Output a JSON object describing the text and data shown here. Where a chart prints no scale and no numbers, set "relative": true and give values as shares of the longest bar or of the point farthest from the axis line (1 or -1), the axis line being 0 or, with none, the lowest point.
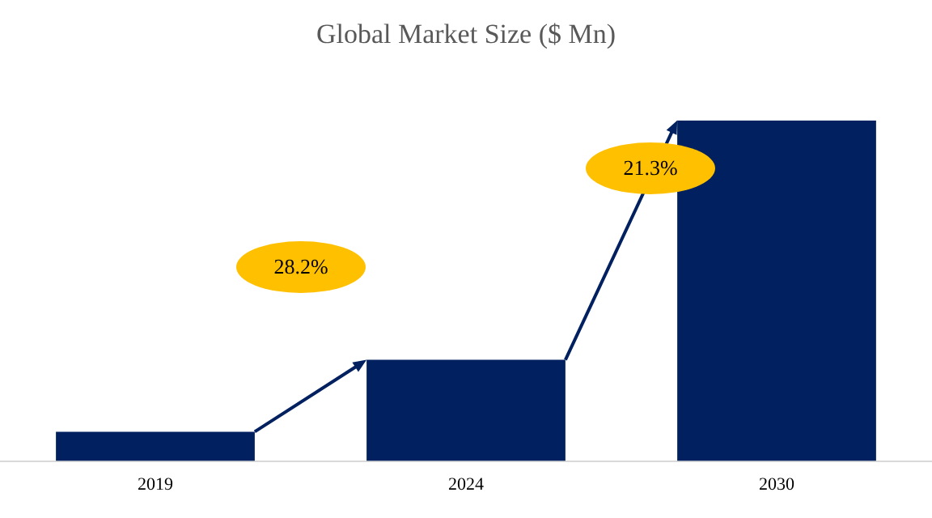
{
  "chart_data": {
    "type": "bar",
    "title": "Global Market Size ($ Mn)",
    "categories": [
      "2019",
      "2024",
      "2030"
    ],
    "values": [
      0.086,
      0.297,
      1
    ],
    "color": "#002060",
    "relative": true,
    "grid": false,
    "annotations": [
      "28.2%",
      "21.3%"
    ]
  }
}
